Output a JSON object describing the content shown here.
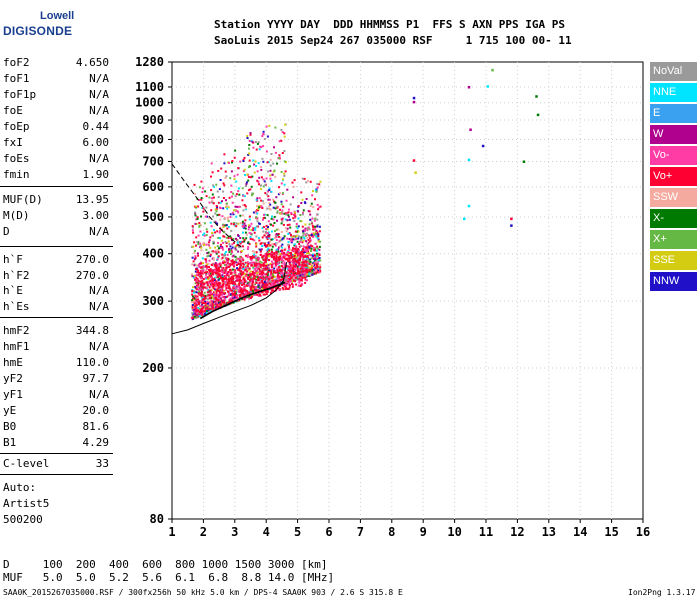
{
  "logo": {
    "top": "Lowell",
    "bottom": "DIGISONDE"
  },
  "header": {
    "line1": "Station YYYY DAY  DDD HHMMSS P1  FFS S AXN PPS IGA PS",
    "line2": "SaoLuis 2015 Sep24 267 035000 RSF     1 715 100 00- 11"
  },
  "params_group1": [
    {
      "key": "foF2",
      "value": "4.650"
    },
    {
      "key": "foF1",
      "value": "N/A"
    },
    {
      "key": "foF1p",
      "value": "N/A"
    },
    {
      "key": "foE",
      "value": "N/A"
    },
    {
      "key": "foEp",
      "value": "0.44"
    },
    {
      "key": "fxI",
      "value": "6.00"
    },
    {
      "key": "foEs",
      "value": "N/A"
    },
    {
      "key": "fmin",
      "value": "1.90"
    }
  ],
  "params_group2": [
    {
      "key": "MUF(D)",
      "value": "13.95"
    },
    {
      "key": "M(D)",
      "value": "3.00"
    },
    {
      "key": "D",
      "value": "N/A"
    }
  ],
  "params_group3": [
    {
      "key": "h`F",
      "value": "270.0"
    },
    {
      "key": "h`F2",
      "value": "270.0"
    },
    {
      "key": "h`E",
      "value": "N/A"
    },
    {
      "key": "h`Es",
      "value": "N/A"
    }
  ],
  "params_group4": [
    {
      "key": "hmF2",
      "value": "344.8"
    },
    {
      "key": "hmF1",
      "value": "N/A"
    },
    {
      "key": "hmE",
      "value": "110.0"
    },
    {
      "key": "yF2",
      "value": "97.7"
    },
    {
      "key": "yF1",
      "value": "N/A"
    },
    {
      "key": "yE",
      "value": "20.0"
    },
    {
      "key": "B0",
      "value": "81.6"
    },
    {
      "key": "B1",
      "value": "4.29"
    }
  ],
  "clevel": {
    "key": "C-level",
    "value": "33"
  },
  "auto": {
    "line1": "Auto:",
    "line2": "Artist5",
    "line3": "500200"
  },
  "legend": [
    {
      "label": "NoVal",
      "color": "#9a9a9a"
    },
    {
      "label": "NNE",
      "color": "#00e5ff"
    },
    {
      "label": "E",
      "color": "#3aa0f0"
    },
    {
      "label": "W",
      "color": "#b0008e"
    },
    {
      "label": "Vo-",
      "color": "#ff3ca5"
    },
    {
      "label": "Vo+",
      "color": "#ff0033"
    },
    {
      "label": "SSW",
      "color": "#f5aaa0"
    },
    {
      "label": "X-",
      "color": "#007a00"
    },
    {
      "label": "X+",
      "color": "#66b845"
    },
    {
      "label": "SSE",
      "color": "#d3cc12"
    },
    {
      "label": "NNW",
      "color": "#2010c8"
    }
  ],
  "bottom": {
    "line1": "D     100  200  400  600  800 1000 1500 3000 [km]",
    "line2": "MUF   5.0  5.0  5.2  5.6  6.1  6.8  8.8 14.0 [MHz]"
  },
  "footer": {
    "left": "SAA0K_2015267035000.RSF / 300fx256h 50 kHz 5.0 km / DPS-4 SAA0K 903 / 2.6 S 315.8 E",
    "right": "Ion2Png 1.3.17"
  },
  "chart_data": {
    "type": "scatter",
    "title": "",
    "xlabel": "",
    "ylabel": "",
    "xlim": [
      1,
      16
    ],
    "ylim": [
      80,
      1280
    ],
    "y_scale": "log",
    "x_ticks": [
      1,
      2,
      3,
      4,
      5,
      6,
      7,
      8,
      9,
      10,
      11,
      12,
      13,
      14,
      15,
      16
    ],
    "y_ticks": [
      80,
      200,
      300,
      400,
      500,
      600,
      700,
      800,
      900,
      1000,
      1100,
      1280
    ],
    "grid": true,
    "legend_position": "right",
    "series": [
      {
        "name": "NNE",
        "points": [
          [
            11.05,
            1105
          ],
          [
            10.45,
            708
          ],
          [
            10.45,
            535
          ],
          [
            10.3,
            495
          ]
        ]
      },
      {
        "name": "W",
        "points": [
          [
            10.45,
            1100
          ],
          [
            8.7,
            1005
          ],
          [
            10.5,
            850
          ]
        ]
      },
      {
        "name": "Vo+",
        "points": [
          [
            11.8,
            495
          ],
          [
            8.7,
            705
          ]
        ]
      },
      {
        "name": "X-",
        "points": [
          [
            12.6,
            1040
          ],
          [
            12.65,
            930
          ],
          [
            12.2,
            700
          ]
        ]
      },
      {
        "name": "X+",
        "points": [
          [
            11.2,
            1220
          ]
        ]
      },
      {
        "name": "SSE",
        "points": [
          [
            8.75,
            655
          ]
        ]
      },
      {
        "name": "NNW",
        "points": [
          [
            8.7,
            1030
          ],
          [
            10.9,
            770
          ],
          [
            11.8,
            475
          ]
        ]
      }
    ],
    "traces": [
      {
        "name": "profile",
        "points": [
          [
            1.0,
            246
          ],
          [
            1.5,
            252
          ],
          [
            2.0,
            262
          ],
          [
            2.5,
            272
          ],
          [
            3.0,
            282
          ],
          [
            3.5,
            292
          ],
          [
            4.0,
            306
          ],
          [
            4.3,
            320
          ],
          [
            4.55,
            340
          ],
          [
            4.65,
            380
          ]
        ]
      },
      {
        "name": "trace",
        "points": [
          [
            1.9,
            270
          ],
          [
            2.3,
            282
          ],
          [
            2.7,
            292
          ],
          [
            3.0,
            300
          ],
          [
            3.4,
            310
          ],
          [
            3.8,
            318
          ],
          [
            4.2,
            326
          ],
          [
            4.6,
            336
          ]
        ]
      },
      {
        "name": "dashed",
        "points": [
          [
            1.0,
            690
          ],
          [
            1.4,
            620
          ],
          [
            1.8,
            560
          ],
          [
            2.2,
            500
          ],
          [
            2.6,
            460
          ],
          [
            3.0,
            430
          ],
          [
            3.3,
            410
          ]
        ]
      }
    ]
  }
}
